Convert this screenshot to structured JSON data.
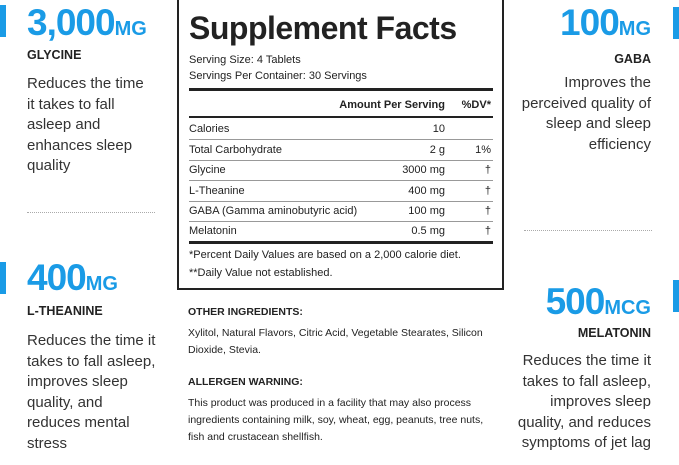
{
  "colors": {
    "accent": "#1a9be6",
    "text": "#222222"
  },
  "left": [
    {
      "amount": "3,000",
      "unit": "MG",
      "name": "GLYCINE",
      "description": "Reduces the time it takes to fall asleep and enhances sleep quality"
    },
    {
      "amount": "400",
      "unit": "MG",
      "name": "L-THEANINE",
      "description": "Reduces the time it takes to fall asleep, improves sleep quality, and reduces mental stress"
    }
  ],
  "right": [
    {
      "amount": "100",
      "unit": "MG",
      "name": "GABA",
      "description": "Improves the perceived quality of sleep and sleep efficiency"
    },
    {
      "amount": "500",
      "unit": "MCG",
      "name": "MELATONIN",
      "description": "Reduces the time it takes to fall asleep, improves sleep quality, and reduces symptoms of jet lag"
    }
  ],
  "facts": {
    "title": "Supplement Facts",
    "serving_size": "Serving Size: 4 Tablets",
    "servings_per_container": "Servings Per Container: 30 Servings",
    "header_amount": "Amount Per Serving",
    "header_dv": "%DV*",
    "rows": [
      {
        "name": "Calories",
        "amount": "10",
        "dv": ""
      },
      {
        "name": "Total Carbohydrate",
        "amount": "2 g",
        "dv": "1%"
      },
      {
        "name": "Glycine",
        "amount": "3000 mg",
        "dv": "†"
      },
      {
        "name": "L-Theanine",
        "amount": "400 mg",
        "dv": "†"
      },
      {
        "name": "GABA (Gamma aminobutyric acid)",
        "amount": "100 mg",
        "dv": "†"
      },
      {
        "name": "Melatonin",
        "amount": "0.5 mg",
        "dv": "†"
      }
    ],
    "footnote1": "*Percent Daily Values are based on a 2,000 calorie diet.",
    "footnote2": "**Daily Value not established."
  },
  "other_ingredients": {
    "heading": "OTHER INGREDIENTS:",
    "text": "Xylitol, Natural Flavors, Citric Acid, Vegetable Stearates, Silicon Dioxide, Stevia."
  },
  "allergen": {
    "heading": "ALLERGEN WARNING:",
    "text": "This product was produced in a facility that may also process ingredients containing milk, soy, wheat, egg, peanuts, tree nuts, fish and crustacean shellfish."
  }
}
